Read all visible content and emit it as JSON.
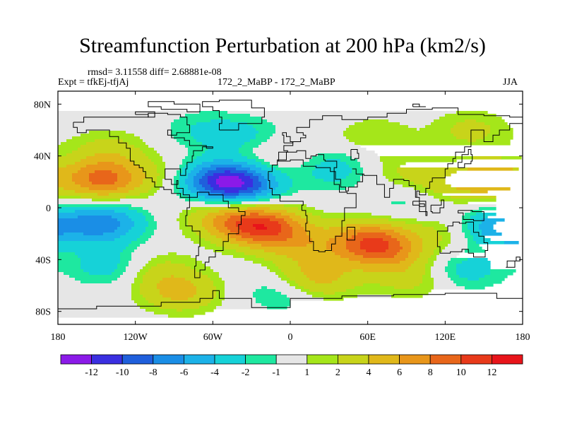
{
  "chart_data": {
    "type": "heatmap",
    "title": "Streamfunction Perturbation at 200 hPa (km2/s)",
    "stats_line": "rmsd= 3.11558 diff= 2.68881e-08",
    "expt_line": "Expt = tfkEj-tfjAj",
    "case_line": "172_2_MaBP - 172_2_MaBP",
    "season": "JJA",
    "projection": "cylindrical equidistant, coastlines overlaid",
    "x_range": [
      -180,
      180
    ],
    "y_range": [
      -90,
      90
    ],
    "x_ticks": [
      "180",
      "120W",
      "60W",
      "0",
      "60E",
      "120E",
      "180"
    ],
    "y_ticks": [
      "80N",
      "40N",
      "0",
      "40S",
      "80S"
    ],
    "colorbar_labels": [
      "-12",
      "-10",
      "-8",
      "-6",
      "-4",
      "-2",
      "-1",
      "1",
      "2",
      "4",
      "6",
      "8",
      "10",
      "12"
    ],
    "colorbar_colors": [
      "#8b1ae8",
      "#3a2fe0",
      "#1f5fdc",
      "#1a8ee6",
      "#1cb2e8",
      "#16d2d8",
      "#1ee8a0",
      "#e6e6e6",
      "#a5e61a",
      "#c8d41a",
      "#e0b81a",
      "#e8961a",
      "#e8661a",
      "#e83a1a",
      "#e8141a"
    ],
    "blobs": [
      {
        "lon": -145,
        "lat": 22,
        "value": 8.5
      },
      {
        "lon": -140,
        "lat": 45,
        "value": 2.5
      },
      {
        "lon": -145,
        "lat": -12,
        "value": -7
      },
      {
        "lon": -140,
        "lat": -45,
        "value": -3.2
      },
      {
        "lon": -105,
        "lat": -48,
        "value": 2.5
      },
      {
        "lon": -85,
        "lat": -65,
        "value": 4.5
      },
      {
        "lon": -95,
        "lat": 25,
        "value": 1.8
      },
      {
        "lon": -70,
        "lat": 60,
        "value": -1.8
      },
      {
        "lon": -40,
        "lat": 18,
        "value": -9.5
      },
      {
        "lon": -60,
        "lat": 22,
        "value": -6
      },
      {
        "lon": -35,
        "lat": 55,
        "value": -2.5
      },
      {
        "lon": -15,
        "lat": 40,
        "value": 1.8
      },
      {
        "lon": -20,
        "lat": -15,
        "value": 10
      },
      {
        "lon": -50,
        "lat": -8,
        "value": 5
      },
      {
        "lon": 10,
        "lat": -30,
        "value": 3.5
      },
      {
        "lon": -5,
        "lat": -65,
        "value": -2.5
      },
      {
        "lon": 20,
        "lat": -55,
        "value": 5
      },
      {
        "lon": 35,
        "lat": 30,
        "value": -3
      },
      {
        "lon": 65,
        "lat": 55,
        "value": 2
      },
      {
        "lon": 60,
        "lat": -25,
        "value": 7.5
      },
      {
        "lon": 75,
        "lat": -35,
        "value": 5
      },
      {
        "lon": 85,
        "lat": 28,
        "value": 2
      },
      {
        "lon": 90,
        "lat": 5,
        "value": -1.8
      },
      {
        "lon": 95,
        "lat": -55,
        "value": 2.5
      },
      {
        "lon": 140,
        "lat": 60,
        "value": 2.5
      },
      {
        "lon": 155,
        "lat": 22,
        "value": 5
      },
      {
        "lon": 120,
        "lat": 18,
        "value": 2.5
      },
      {
        "lon": 165,
        "lat": -15,
        "value": -6.5
      },
      {
        "lon": 135,
        "lat": -48,
        "value": -3
      },
      {
        "lon": 115,
        "lat": -20,
        "value": 2.0
      }
    ]
  }
}
